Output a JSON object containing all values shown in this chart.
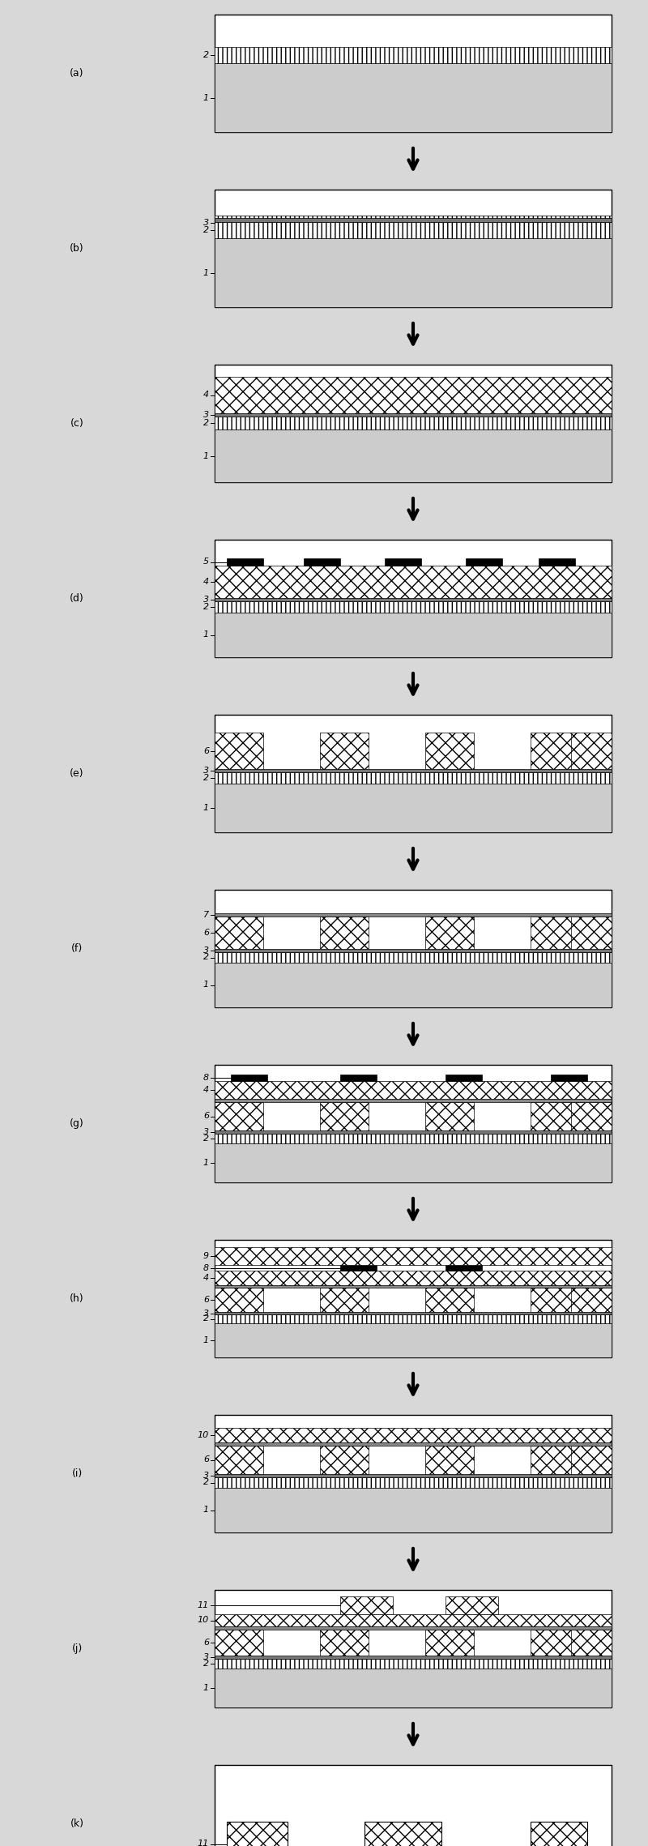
{
  "fig_width": 8.0,
  "fig_height": 22.78,
  "bg_color": "#d8d8d8",
  "panel_color": "#ffffff",
  "substrate_color": "#d8d8d8",
  "steps": [
    "a",
    "b",
    "c",
    "d",
    "e",
    "f",
    "g",
    "h",
    "i",
    "j",
    "k"
  ]
}
